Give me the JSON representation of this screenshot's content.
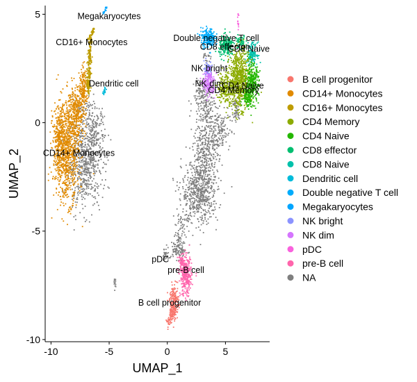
{
  "chart_data": {
    "type": "scatter",
    "title": "",
    "xlabel": "UMAP_1",
    "ylabel": "UMAP_2",
    "xlim": [
      -10.5,
      8.8
    ],
    "ylim": [
      -10.1,
      5.4
    ],
    "xticks": [
      -10,
      -5,
      0,
      5
    ],
    "yticks": [
      -10,
      -5,
      0,
      5
    ],
    "grid": false,
    "legend_position": "right",
    "series": [
      {
        "name": "B cell progenitor",
        "color": "#F8766D",
        "centroid": [
          0.3,
          -8.5
        ]
      },
      {
        "name": "CD14+ Monocytes",
        "color": "#E18A00",
        "centroid": [
          -8.6,
          -1.4
        ]
      },
      {
        "name": "CD16+ Monocytes",
        "color": "#BE9C00",
        "centroid": [
          -6.5,
          3.8
        ]
      },
      {
        "name": "CD4 Memory",
        "color": "#8CAB00",
        "centroid": [
          6.5,
          1.6
        ]
      },
      {
        "name": "CD4 Naive",
        "color": "#24B700",
        "centroid": [
          7.2,
          2.2
        ]
      },
      {
        "name": "CD8 effector",
        "color": "#00BE70",
        "centroid": [
          5.3,
          3.4
        ]
      },
      {
        "name": "CD8 Naive",
        "color": "#00C1AB",
        "centroid": [
          7.3,
          3.3
        ]
      },
      {
        "name": "Dendritic cell",
        "color": "#00BBDA",
        "centroid": [
          -5.6,
          1.5
        ]
      },
      {
        "name": "Double negative T cell",
        "color": "#00ACFC",
        "centroid": [
          3.8,
          3.9
        ]
      },
      {
        "name": "Megakaryocytes",
        "color": "#00A5FF",
        "centroid": [
          -5.3,
          5.2
        ]
      },
      {
        "name": "NK bright",
        "color": "#8B93FF",
        "centroid": [
          3.5,
          2.3
        ]
      },
      {
        "name": "NK dim",
        "color": "#D575FE",
        "centroid": [
          3.6,
          1.8
        ]
      },
      {
        "name": "pDC",
        "color": "#F962DD",
        "centroid": [
          6.1,
          4.8
        ]
      },
      {
        "name": "pre-B cell",
        "color": "#FF65AC",
        "centroid": [
          1.5,
          -7.0
        ]
      },
      {
        "name": "NA",
        "color": "#7F7F7F",
        "centroid": [
          3.0,
          -2.5
        ]
      }
    ],
    "annotations": [
      {
        "text": "Megakaryocytes",
        "x": -5.0,
        "y": 4.9
      },
      {
        "text": "CD16+ Monocytes",
        "x": -6.5,
        "y": 3.7
      },
      {
        "text": "Dendritic cell",
        "x": -4.6,
        "y": 1.8
      },
      {
        "text": "CD14+ Monocytes",
        "x": -7.6,
        "y": -1.4
      },
      {
        "text": "Double negative T cell",
        "x": 4.2,
        "y": 3.9
      },
      {
        "text": "CD8 effector",
        "x": 4.9,
        "y": 3.5
      },
      {
        "text": "CD8 Naive",
        "x": 7.0,
        "y": 3.4
      },
      {
        "text": "NK bright",
        "x": 3.6,
        "y": 2.5
      },
      {
        "text": "NK dim",
        "x": 3.6,
        "y": 1.8
      },
      {
        "text": "CD4 Naive",
        "x": 6.5,
        "y": 1.7
      },
      {
        "text": "CD4 Memory",
        "x": 5.7,
        "y": 1.5
      },
      {
        "text": "pDC",
        "x": -0.6,
        "y": -6.3
      },
      {
        "text": "pre-B cell",
        "x": 1.6,
        "y": -6.8
      },
      {
        "text": "B cell progenitor",
        "x": 0.2,
        "y": -8.3
      }
    ]
  }
}
